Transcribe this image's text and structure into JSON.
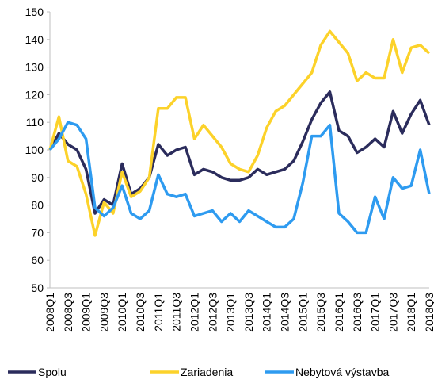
{
  "chart_data": {
    "type": "line",
    "categories": [
      "2008Q1",
      null,
      "2008Q3",
      null,
      "2009Q1",
      null,
      "2009Q3",
      null,
      "2010Q1",
      null,
      "2010Q3",
      null,
      "2011Q1",
      null,
      "2011Q3",
      null,
      "2012Q1",
      null,
      "2012Q3",
      null,
      "2013Q1",
      null,
      "2013Q3",
      null,
      "2014Q1",
      null,
      "2014Q3",
      null,
      "2015Q1",
      null,
      "2015Q3",
      null,
      "2016Q1",
      null,
      "2016Q3",
      null,
      "2017Q1",
      null,
      "2017Q3",
      null,
      "2018Q1",
      null,
      "2018Q3"
    ],
    "series": [
      {
        "name": "Spolu",
        "color": "#2b2c5c",
        "values": [
          100,
          106,
          102,
          100,
          93,
          77,
          82,
          80,
          95,
          84,
          86,
          90,
          102,
          98,
          100,
          101,
          91,
          93,
          92,
          90,
          89,
          89,
          90,
          93,
          91,
          92,
          93,
          96,
          103,
          111,
          117,
          121,
          107,
          105,
          99,
          101,
          104,
          101,
          114,
          106,
          113,
          118,
          109
        ]
      },
      {
        "name": "Zariadenia",
        "color": "#fcd22a",
        "values": [
          100,
          112,
          96,
          94,
          84,
          69,
          81,
          77,
          92,
          83,
          85,
          90,
          115,
          115,
          119,
          119,
          104,
          109,
          105,
          101,
          95,
          93,
          92,
          98,
          108,
          114,
          116,
          120,
          124,
          128,
          138,
          143,
          139,
          135,
          125,
          128,
          126,
          126,
          140,
          128,
          137,
          138,
          135
        ]
      },
      {
        "name": "Nebytová výstavba",
        "color": "#2e9bf0",
        "values": [
          100,
          104,
          110,
          109,
          104,
          79,
          76,
          79,
          87,
          77,
          75,
          78,
          91,
          84,
          83,
          84,
          76,
          77,
          78,
          74,
          77,
          74,
          78,
          76,
          74,
          72,
          72,
          75,
          88,
          105,
          105,
          109,
          77,
          74,
          70,
          70,
          83,
          75,
          90,
          86,
          87,
          100,
          84
        ]
      }
    ],
    "ylim": [
      50,
      150
    ],
    "yticks": [
      50,
      60,
      70,
      80,
      90,
      100,
      110,
      120,
      130,
      140,
      150
    ],
    "grid": false,
    "legend": "bottom"
  }
}
